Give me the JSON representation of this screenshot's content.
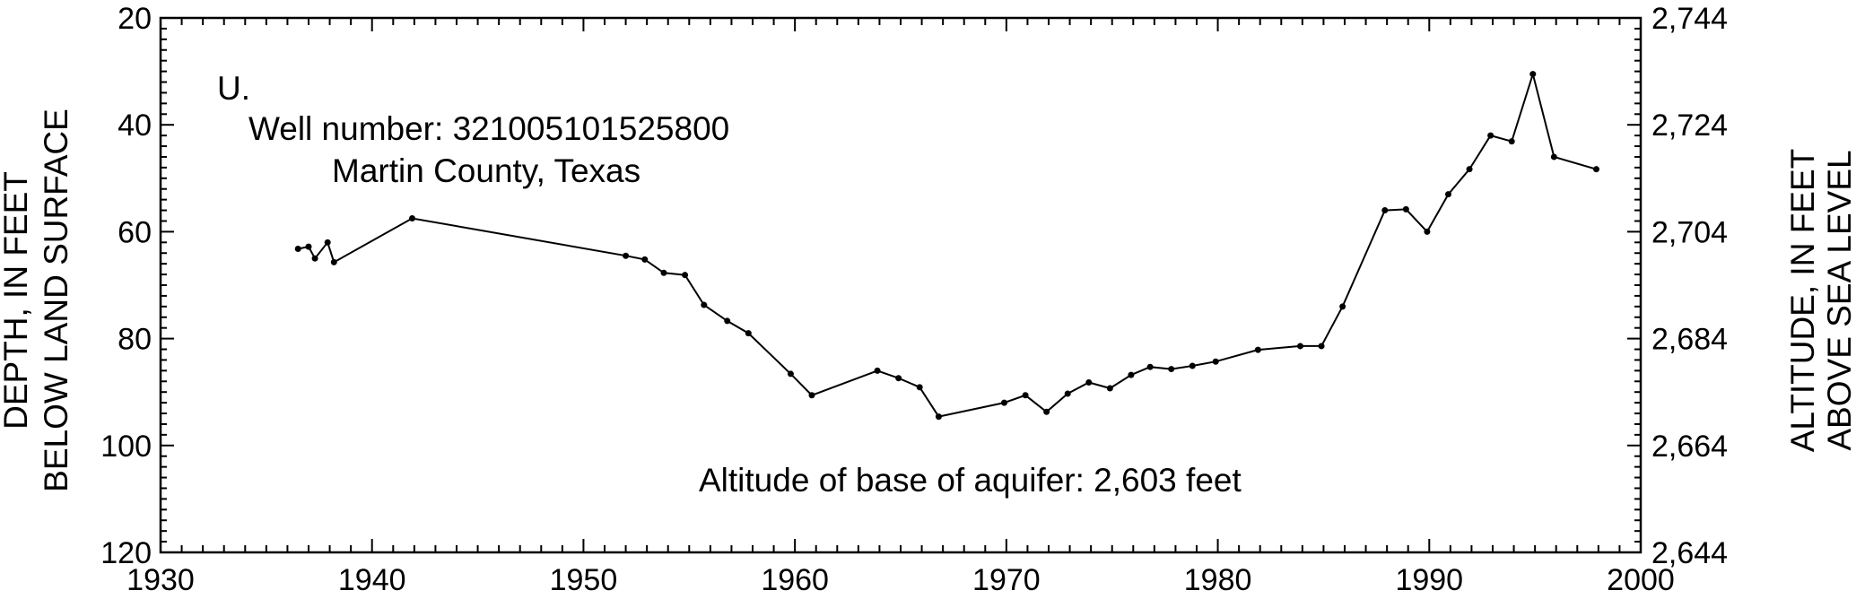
{
  "chart_data": {
    "type": "line",
    "panel_label": "U.",
    "annotations": {
      "well": "Well number: 321005101525800",
      "county": "Martin County, Texas",
      "base": "Altitude of base of aquifer: 2,603 feet"
    },
    "ylabel_left": [
      "DEPTH, IN FEET",
      "BELOW LAND SURFACE"
    ],
    "ylabel_right": [
      "ALTITUDE, IN FEET",
      "ABOVE SEA LEVEL"
    ],
    "xlim": [
      1930,
      2000
    ],
    "ylim_depth": [
      20,
      120
    ],
    "y_inverted": true,
    "ylim_altitude": [
      2644,
      2744
    ],
    "x_ticks": [
      "1930",
      "1940",
      "1950",
      "1960",
      "1970",
      "1980",
      "1990",
      "2000"
    ],
    "y_ticks_left": [
      "20",
      "40",
      "60",
      "80",
      "100",
      "120"
    ],
    "y_ticks_right": [
      "2,744",
      "2,724",
      "2,704",
      "2,684",
      "2,664",
      "2,644"
    ],
    "series": [
      {
        "x": [
          1936.5,
          1937.0,
          1937.3,
          1937.9,
          1938.2,
          1941.9,
          1952.0,
          1952.9,
          1953.8,
          1954.8,
          1955.7,
          1956.8,
          1957.8,
          1959.8,
          1960.8,
          1963.9,
          1964.9,
          1965.9,
          1966.8,
          1969.9,
          1970.9,
          1971.9,
          1972.9,
          1973.9,
          1974.9,
          1975.9,
          1976.8,
          1977.8,
          1978.8,
          1979.9,
          1981.9,
          1983.9,
          1984.9,
          1985.9,
          1987.9,
          1988.9,
          1989.9,
          1990.9,
          1991.9,
          1992.9,
          1993.9,
          1994.9,
          1995.9,
          1997.9
        ],
        "y": [
          63.2,
          62.8,
          65.0,
          62.0,
          65.7,
          57.5,
          64.5,
          65.2,
          67.7,
          68.1,
          73.7,
          76.7,
          79.0,
          86.6,
          90.6,
          86.0,
          87.4,
          89.1,
          94.6,
          92.0,
          90.6,
          93.7,
          90.3,
          88.2,
          89.3,
          86.8,
          85.3,
          85.7,
          85.1,
          84.3,
          82.1,
          81.4,
          81.4,
          74.0,
          56.0,
          55.8,
          60.0,
          53.0,
          48.3,
          42.0,
          43.1,
          30.5,
          46.0,
          48.3
        ]
      }
    ]
  }
}
